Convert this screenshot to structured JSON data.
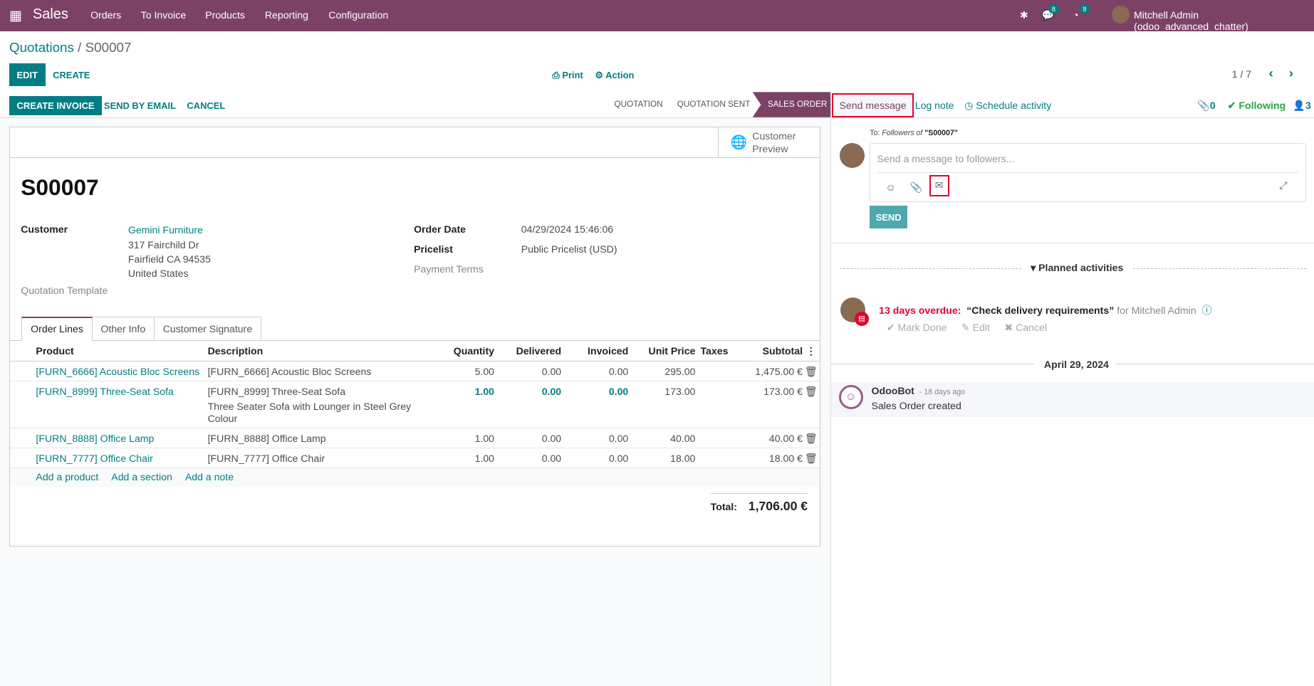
{
  "nav": {
    "app": "Sales",
    "menus": [
      "Orders",
      "To Invoice",
      "Products",
      "Reporting",
      "Configuration"
    ],
    "chat_count": "8",
    "activity_count": "8",
    "user": "Mitchell Admin (odoo_advanced_chatter)"
  },
  "breadcrumb": {
    "parent": "Quotations",
    "current": "S00007"
  },
  "control": {
    "edit": "EDIT",
    "create": "CREATE",
    "print": "Print",
    "action": "Action",
    "pager": "1 / 7"
  },
  "status": {
    "buttons": [
      "CREATE INVOICE",
      "SEND BY EMAIL",
      "CANCEL"
    ],
    "stages": [
      "QUOTATION",
      "QUOTATION SENT",
      "SALES ORDER"
    ]
  },
  "form": {
    "preview": [
      "Customer",
      "Preview"
    ],
    "name": "S00007",
    "customer_label": "Customer",
    "customer": "Gemini Furniture",
    "address": [
      "317 Fairchild Dr",
      "Fairfield CA 94535",
      "United States"
    ],
    "template_label": "Quotation Template",
    "order_date_label": "Order Date",
    "order_date": "04/29/2024 15:46:06",
    "pricelist_label": "Pricelist",
    "pricelist": "Public Pricelist (USD)",
    "payment_terms_label": "Payment Terms",
    "tabs": [
      "Order Lines",
      "Other Info",
      "Customer Signature"
    ],
    "columns": [
      "Product",
      "Description",
      "Quantity",
      "Delivered",
      "Invoiced",
      "Unit Price",
      "Taxes",
      "Subtotal"
    ],
    "lines": [
      {
        "product": "[FURN_6666] Acoustic Bloc Screens",
        "desc": "[FURN_6666] Acoustic Bloc Screens",
        "desc2": "",
        "qty": "5.00",
        "delivered": "0.00",
        "invoiced": "0.00",
        "price": "295.00",
        "subtotal": "1,475.00 €"
      },
      {
        "product": "[FURN_8999] Three-Seat Sofa",
        "desc": "[FURN_8999] Three-Seat Sofa",
        "desc2": "Three Seater Sofa with Lounger in Steel Grey Colour",
        "qty": "1.00",
        "delivered": "0.00",
        "invoiced": "0.00",
        "price": "173.00",
        "subtotal": "173.00 €"
      },
      {
        "product": "[FURN_8888] Office Lamp",
        "desc": "[FURN_8888] Office Lamp",
        "desc2": "",
        "qty": "1.00",
        "delivered": "0.00",
        "invoiced": "0.00",
        "price": "40.00",
        "subtotal": "40.00 €"
      },
      {
        "product": "[FURN_7777] Office Chair",
        "desc": "[FURN_7777] Office Chair",
        "desc2": "",
        "qty": "1.00",
        "delivered": "0.00",
        "invoiced": "0.00",
        "price": "18.00",
        "subtotal": "18.00 €"
      }
    ],
    "add": [
      "Add a product",
      "Add a section",
      "Add a note"
    ],
    "total_label": "Total:",
    "total": "1,706.00 €"
  },
  "chatter": {
    "send_message": "Send message",
    "log_note": "Log note",
    "schedule": "Schedule activity",
    "attachments": "0",
    "following": "Following",
    "followers": "3",
    "to_prefix": "To:",
    "to_followers": "Followers of",
    "to_record": "\"S00007\"",
    "placeholder": "Send a message to followers...",
    "send": "SEND",
    "planned": "Planned activities",
    "overdue": "13 days overdue:",
    "activity": "“Check delivery requirements”",
    "for": "for Mitchell Admin",
    "mark_done": "Mark Done",
    "edit": "Edit",
    "cancel": "Cancel",
    "date": "April 29, 2024",
    "author": "OdooBot",
    "ago": "- 18 days ago",
    "message": "Sales Order created"
  },
  "colors": {
    "brand": "#7c4266",
    "accent": "#017e84",
    "danger": "#e4032e"
  }
}
